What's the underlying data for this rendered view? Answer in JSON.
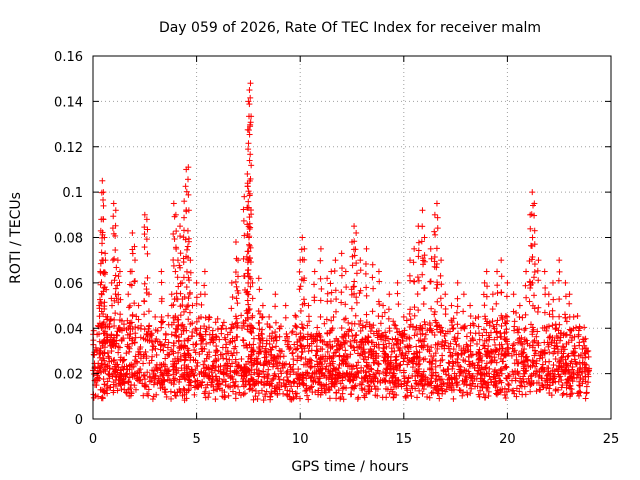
{
  "chart_data": {
    "type": "scatter",
    "title": "Day 059 of 2026, Rate Of TEC Index for receiver malm",
    "xlabel": "GPS time / hours",
    "ylabel": "ROTI / TECUs",
    "xlim": [
      0,
      25
    ],
    "ylim": [
      0,
      0.16
    ],
    "xticks": [
      0,
      5,
      10,
      15,
      20,
      25
    ],
    "yticks": [
      0,
      0.02,
      0.04,
      0.06,
      0.08,
      0.1,
      0.12,
      0.14,
      0.16
    ],
    "xtick_labels": [
      "0",
      "5",
      "10",
      "15",
      "20",
      "25"
    ],
    "ytick_labels": [
      "0",
      "0.02",
      "0.04",
      "0.06",
      "0.08",
      "0.1",
      "0.12",
      "0.14",
      "0.16"
    ],
    "grid": true,
    "marker": "+",
    "marker_color": "#ff0000",
    "series": [
      {
        "name": "ROTI",
        "description_x_range": [
          0,
          24
        ],
        "points": [
          [
            0.1,
            0.015
          ],
          [
            0.2,
            0.03
          ],
          [
            0.3,
            0.05
          ],
          [
            0.35,
            0.065
          ],
          [
            0.4,
            0.088
          ],
          [
            0.45,
            0.105
          ],
          [
            0.5,
            0.1
          ],
          [
            0.55,
            0.08
          ],
          [
            0.6,
            0.07
          ],
          [
            0.7,
            0.045
          ],
          [
            0.9,
            0.06
          ],
          [
            1.0,
            0.095
          ],
          [
            1.1,
            0.092
          ],
          [
            1.2,
            0.07
          ],
          [
            1.3,
            0.065
          ],
          [
            1.5,
            0.04
          ],
          [
            1.7,
            0.055
          ],
          [
            1.8,
            0.065
          ],
          [
            1.9,
            0.082
          ],
          [
            2.0,
            0.076
          ],
          [
            2.2,
            0.05
          ],
          [
            2.5,
            0.09
          ],
          [
            2.6,
            0.088
          ],
          [
            2.7,
            0.055
          ],
          [
            3.0,
            0.045
          ],
          [
            3.3,
            0.065
          ],
          [
            3.5,
            0.035
          ],
          [
            3.8,
            0.055
          ],
          [
            3.9,
            0.095
          ],
          [
            4.0,
            0.09
          ],
          [
            4.1,
            0.07
          ],
          [
            4.2,
            0.085
          ],
          [
            4.3,
            0.06
          ],
          [
            4.4,
            0.096
          ],
          [
            4.5,
            0.11
          ],
          [
            4.6,
            0.111
          ],
          [
            4.7,
            0.07
          ],
          [
            4.8,
            0.05
          ],
          [
            5.0,
            0.06
          ],
          [
            5.2,
            0.055
          ],
          [
            5.4,
            0.065
          ],
          [
            5.6,
            0.045
          ],
          [
            5.8,
            0.035
          ],
          [
            6.0,
            0.03
          ],
          [
            6.2,
            0.04
          ],
          [
            6.4,
            0.035
          ],
          [
            6.7,
            0.06
          ],
          [
            6.9,
            0.078
          ],
          [
            7.0,
            0.07
          ],
          [
            7.3,
            0.098
          ],
          [
            7.45,
            0.108
          ],
          [
            7.5,
            0.14
          ],
          [
            7.55,
            0.145
          ],
          [
            7.6,
            0.148
          ],
          [
            7.55,
            0.089
          ],
          [
            7.7,
            0.06
          ],
          [
            8.0,
            0.062
          ],
          [
            8.2,
            0.05
          ],
          [
            8.5,
            0.045
          ],
          [
            8.8,
            0.055
          ],
          [
            9.0,
            0.04
          ],
          [
            9.3,
            0.05
          ],
          [
            9.6,
            0.038
          ],
          [
            9.8,
            0.045
          ],
          [
            10.0,
            0.07
          ],
          [
            10.1,
            0.08
          ],
          [
            10.2,
            0.075
          ],
          [
            10.4,
            0.05
          ],
          [
            10.7,
            0.065
          ],
          [
            11.0,
            0.075
          ],
          [
            11.3,
            0.062
          ],
          [
            11.5,
            0.065
          ],
          [
            11.7,
            0.07
          ],
          [
            12.0,
            0.073
          ],
          [
            12.2,
            0.065
          ],
          [
            12.5,
            0.078
          ],
          [
            12.6,
            0.085
          ],
          [
            12.7,
            0.082
          ],
          [
            12.9,
            0.07
          ],
          [
            13.2,
            0.075
          ],
          [
            13.5,
            0.068
          ],
          [
            13.8,
            0.065
          ],
          [
            14.0,
            0.05
          ],
          [
            14.3,
            0.055
          ],
          [
            14.7,
            0.06
          ],
          [
            15.0,
            0.045
          ],
          [
            15.3,
            0.07
          ],
          [
            15.5,
            0.075
          ],
          [
            15.7,
            0.085
          ],
          [
            15.9,
            0.092
          ],
          [
            16.0,
            0.08
          ],
          [
            16.3,
            0.075
          ],
          [
            16.5,
            0.09
          ],
          [
            16.6,
            0.095
          ],
          [
            16.8,
            0.07
          ],
          [
            17.0,
            0.055
          ],
          [
            17.3,
            0.05
          ],
          [
            17.6,
            0.06
          ],
          [
            17.9,
            0.055
          ],
          [
            18.2,
            0.05
          ],
          [
            18.6,
            0.045
          ],
          [
            18.9,
            0.06
          ],
          [
            19.0,
            0.065
          ],
          [
            19.3,
            0.055
          ],
          [
            19.5,
            0.065
          ],
          [
            19.7,
            0.07
          ],
          [
            20.0,
            0.06
          ],
          [
            20.3,
            0.055
          ],
          [
            20.6,
            0.05
          ],
          [
            20.9,
            0.065
          ],
          [
            21.1,
            0.09
          ],
          [
            21.2,
            0.1
          ],
          [
            21.3,
            0.095
          ],
          [
            21.5,
            0.07
          ],
          [
            21.8,
            0.065
          ],
          [
            22.0,
            0.055
          ],
          [
            22.2,
            0.06
          ],
          [
            22.5,
            0.07
          ],
          [
            22.8,
            0.06
          ],
          [
            23.0,
            0.055
          ],
          [
            23.2,
            0.045
          ],
          [
            23.5,
            0.04
          ],
          [
            23.7,
            0.035
          ],
          [
            23.9,
            0.03
          ]
        ]
      }
    ],
    "background_band": {
      "description": "dense cloud of points across full time range",
      "y_low": 0.008,
      "y_high": 0.035,
      "x_range": [
        0,
        24
      ]
    }
  }
}
